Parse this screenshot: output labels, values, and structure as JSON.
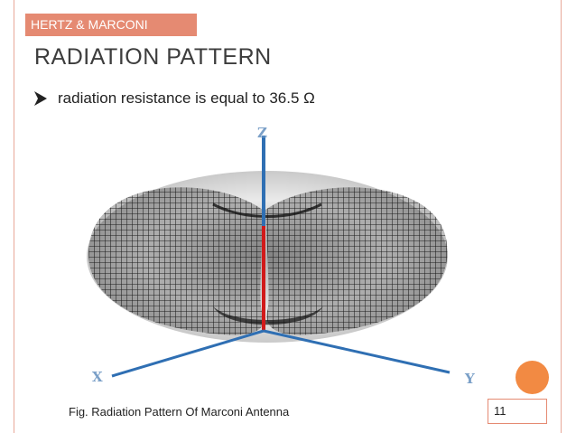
{
  "section_tag": "HERTZ & MARCONI",
  "title": "RADIATION PATTERN",
  "bullets": [
    {
      "icon": "arrow-bullet-icon",
      "text": "radiation resistance is equal to 36.5 Ω"
    }
  ],
  "figure": {
    "axis_labels": {
      "z": "Z",
      "x": "X",
      "y": "Y"
    },
    "caption": "Fig. Radiation Pattern Of Marconi Antenna"
  },
  "page_number": "11",
  "colors": {
    "accent": "#e58a72",
    "orange_dot": "#f28a43",
    "axis_blue": "#2f6fb3",
    "antenna_red": "#d11a1a"
  }
}
